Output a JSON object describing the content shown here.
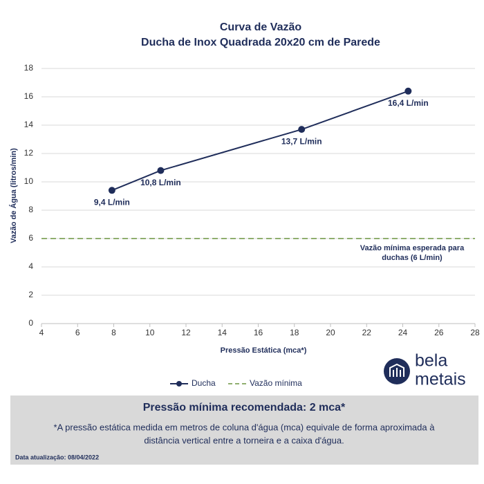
{
  "chart_data": {
    "type": "line",
    "title": "Curva de Vazão",
    "subtitle": "Ducha de Inox Quadrada 20x20 cm de Parede",
    "xlabel": "Pressão Estática (mca*)",
    "ylabel": "Vazão de Água (litros/min)",
    "xlim": [
      4,
      28
    ],
    "xticks": [
      4,
      6,
      8,
      10,
      12,
      14,
      16,
      18,
      20,
      22,
      24,
      26,
      28
    ],
    "ylim": [
      0,
      18
    ],
    "yticks": [
      0,
      2,
      4,
      6,
      8,
      10,
      12,
      14,
      16,
      18
    ],
    "grid": true,
    "series": [
      {
        "name": "Ducha",
        "color": "#1f2d5a",
        "x": [
          7.9,
          10.6,
          18.4,
          24.3
        ],
        "values": [
          9.4,
          10.8,
          13.7,
          16.4
        ],
        "value_labels": [
          "9,4 L/min",
          "10,8 L/min",
          "13,7 L/min",
          "16,4 L/min"
        ]
      }
    ],
    "reference_lines": [
      {
        "name": "Vazão mínima",
        "value": 6,
        "color": "#8fae6e",
        "annotation": [
          "Vazão mínima esperada para",
          "duchas (6 L/min)"
        ]
      }
    ]
  },
  "logo": {
    "line1": "bela",
    "line2": "metais"
  },
  "footer": {
    "title": "Pressão mínima recomendada: 2 mca*",
    "note": [
      "*A pressão estática medida em metros de coluna d'água (mca) equivale de forma aproximada à",
      "distância vertical entre a torneira e a caixa d'água."
    ],
    "date": "Data atualização:  08/04/2022"
  }
}
